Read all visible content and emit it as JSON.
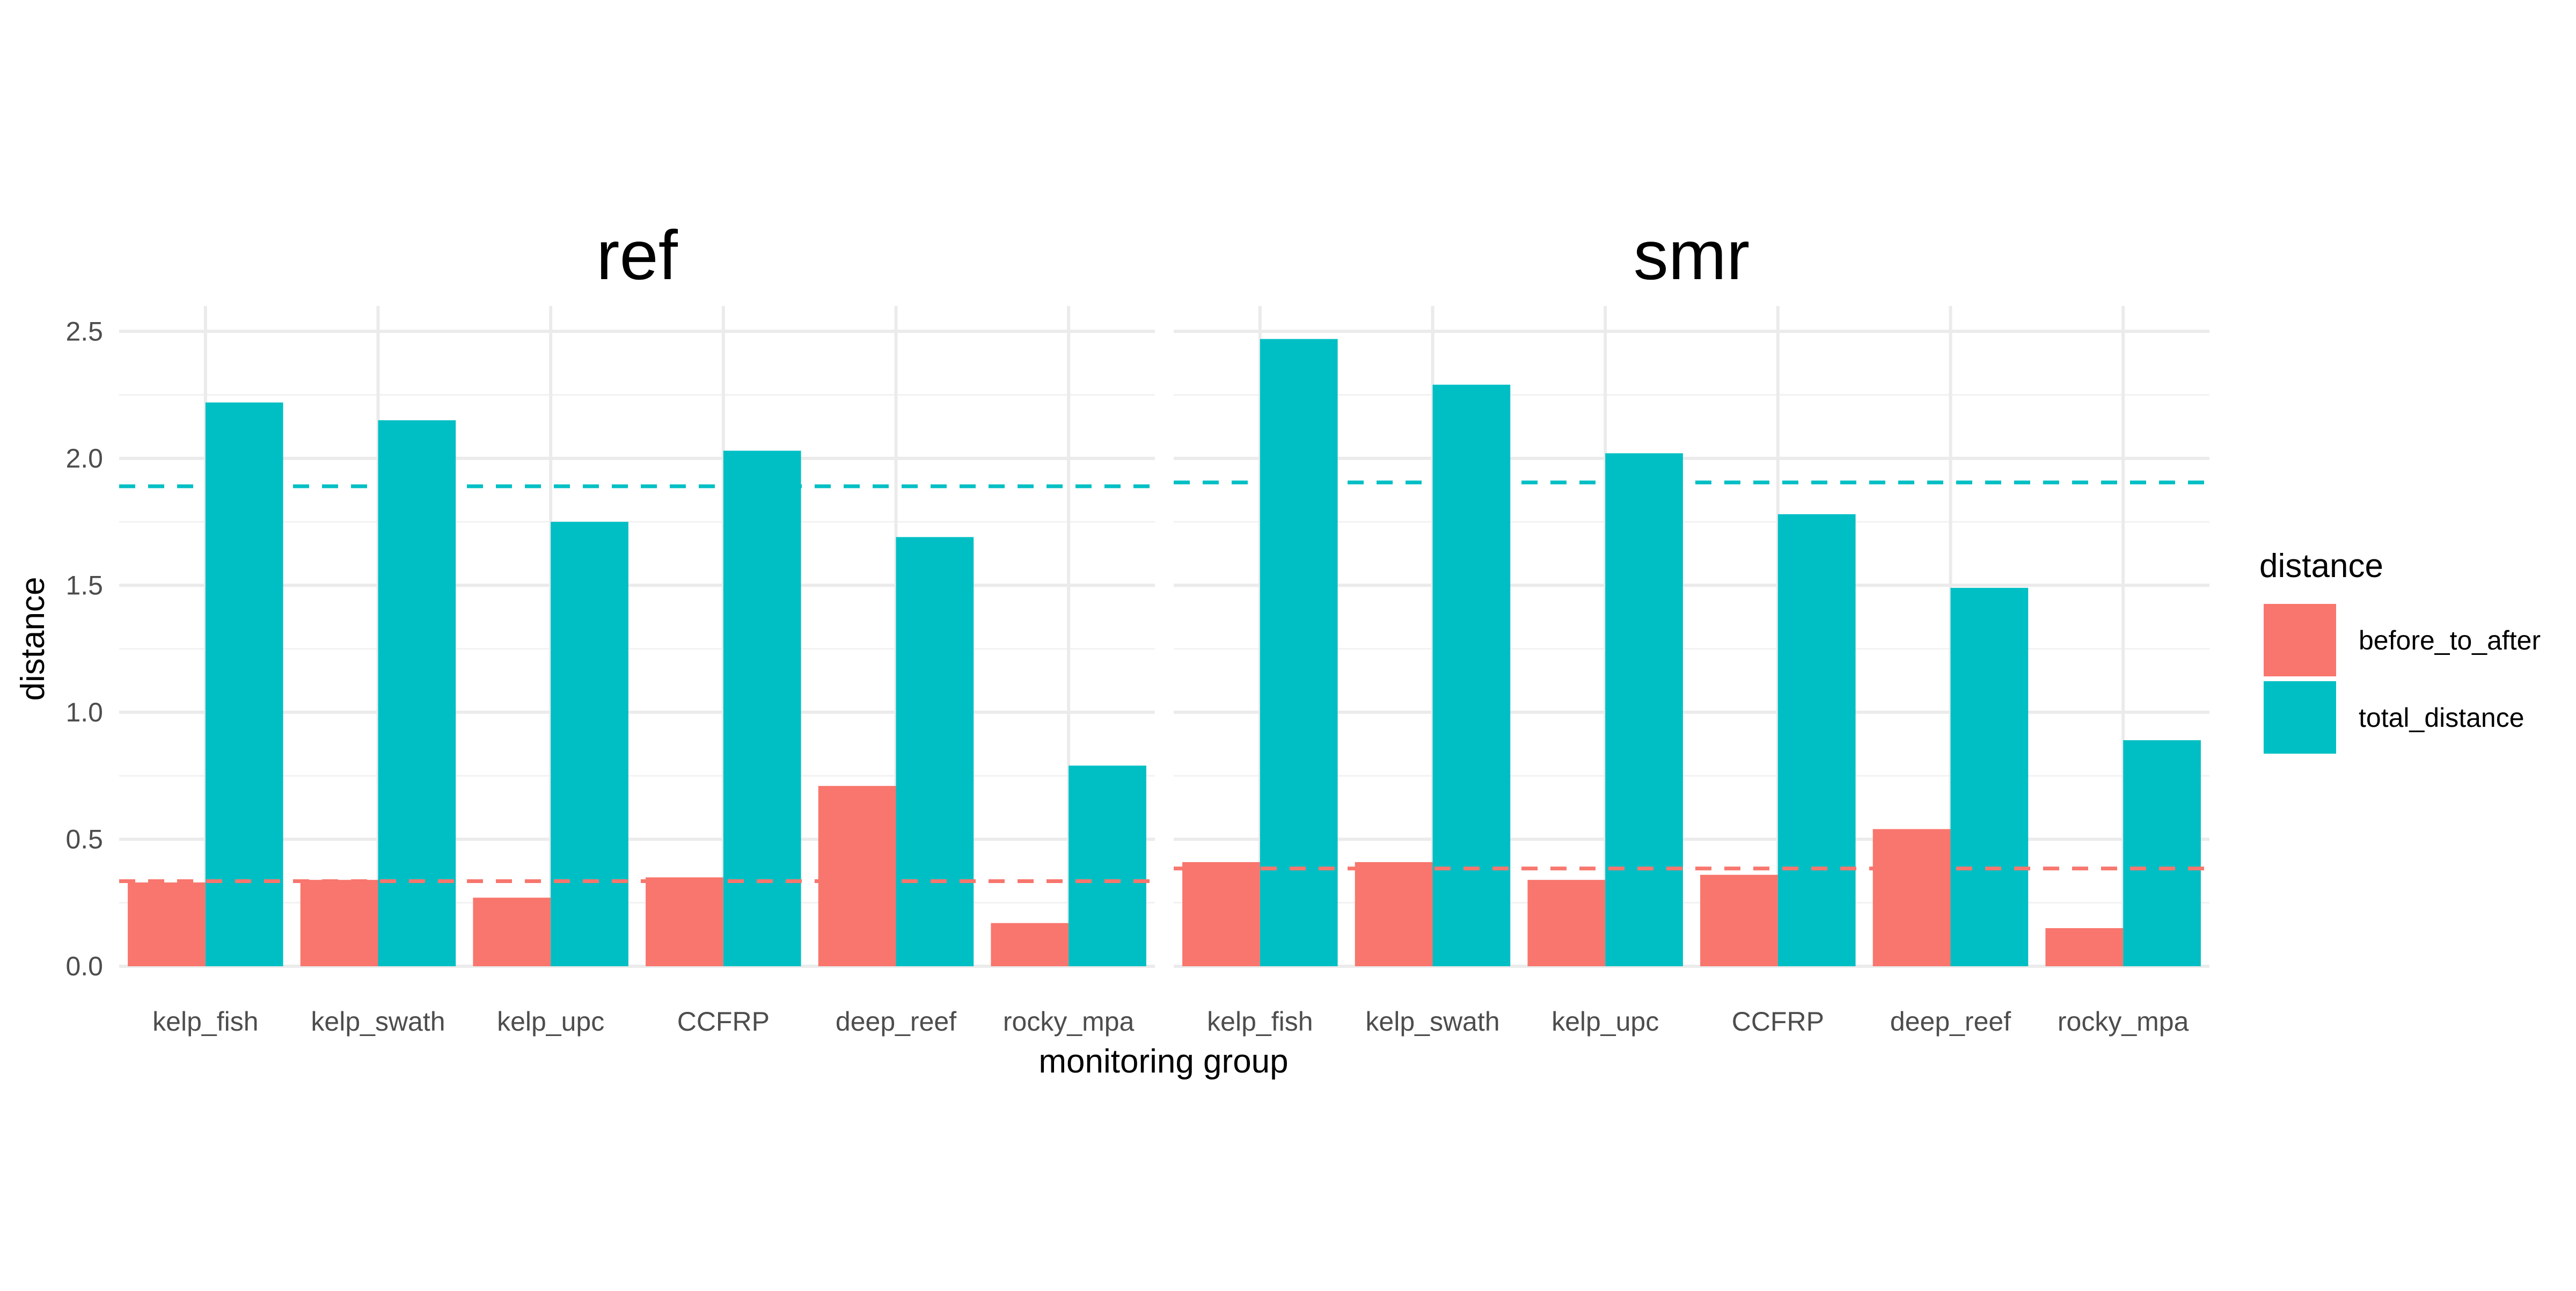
{
  "chart_data": {
    "type": "bar",
    "xlabel": "monitoring group",
    "ylabel": "distance",
    "ylim": [
      0,
      2.6
    ],
    "yticks": [
      0.0,
      0.5,
      1.0,
      1.5,
      2.0,
      2.5
    ],
    "ytick_labels": [
      "0.0",
      "0.5",
      "1.0",
      "1.5",
      "2.0",
      "2.5"
    ],
    "grid": true,
    "legend": {
      "title": "distance",
      "position": "right",
      "entries": [
        {
          "name": "before_to_after",
          "color": "#F8766D"
        },
        {
          "name": "total_distance",
          "color": "#00BFC4"
        }
      ]
    },
    "categories": [
      "kelp_fish",
      "kelp_swath",
      "kelp_upc",
      "CCFRP",
      "deep_reef",
      "rocky_mpa"
    ],
    "panels": [
      {
        "title": "ref",
        "series": [
          {
            "name": "before_to_after",
            "values": [
              0.33,
              0.34,
              0.27,
              0.35,
              0.71,
              0.17
            ],
            "mean_line": 0.335
          },
          {
            "name": "total_distance",
            "values": [
              2.22,
              2.15,
              1.75,
              2.03,
              1.69,
              0.79
            ],
            "mean_line": 1.89
          }
        ]
      },
      {
        "title": "smr",
        "series": [
          {
            "name": "before_to_after",
            "values": [
              0.41,
              0.41,
              0.34,
              0.36,
              0.54,
              0.15
            ],
            "mean_line": 0.385
          },
          {
            "name": "total_distance",
            "values": [
              2.47,
              2.29,
              2.02,
              1.78,
              1.49,
              0.89
            ],
            "mean_line": 1.905
          }
        ]
      }
    ]
  }
}
